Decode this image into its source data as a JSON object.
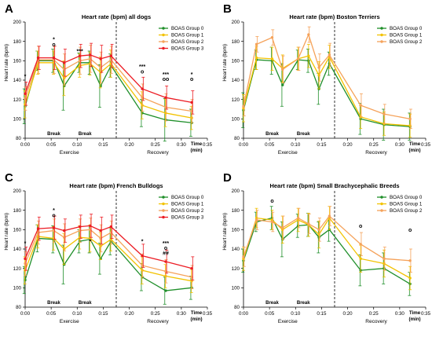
{
  "colors": {
    "g0": "#1f8f2a",
    "g1": "#f2c200",
    "g2": "#f5a25a",
    "g3": "#ec1c24",
    "axis": "#000000"
  },
  "chart_data": [
    {
      "panel": "A",
      "title": "Heart rate (bpm) all dogs",
      "type": "line",
      "ylabel": "Heart rate (bpm)",
      "ylim": [
        80,
        200
      ],
      "yticks": [
        80,
        100,
        120,
        140,
        160,
        180,
        200
      ],
      "xlim": [
        0,
        35
      ],
      "xticks": [
        "0:00",
        "0:05",
        "0:10",
        "0:15",
        "0:20",
        "0:25",
        "0:30",
        "0:35"
      ],
      "xlabel": "Time (min)",
      "phases": [
        "Exercise",
        "Recovery"
      ],
      "breaks": [
        "Break",
        "Break"
      ],
      "legend_position": "top-right",
      "series": [
        {
          "name": "BOAS Group 0",
          "color": "g0",
          "x": [
            0,
            2.5,
            5.5,
            7.5,
            10.5,
            12.5,
            14.5,
            16.5,
            22.5,
            27,
            32
          ],
          "y": [
            113,
            160,
            160,
            134,
            158,
            158,
            134,
            155,
            106,
            99,
            96
          ],
          "err": [
            18,
            10,
            12,
            25,
            10,
            12,
            22,
            12,
            14,
            22,
            14
          ]
        },
        {
          "name": "BOAS Group 1",
          "color": "g1",
          "x": [
            0,
            2.5,
            5.5,
            7.5,
            10.5,
            12.5,
            14.5,
            16.5,
            22.5,
            27,
            32
          ],
          "y": [
            115,
            158,
            158,
            142,
            155,
            157,
            148,
            157,
            114,
            106,
            101
          ],
          "err": [
            14,
            12,
            12,
            18,
            12,
            12,
            16,
            14,
            14,
            14,
            12
          ]
        },
        {
          "name": "BOAS Group 2",
          "color": "g2",
          "x": [
            0,
            2.5,
            5.5,
            7.5,
            10.5,
            12.5,
            14.5,
            16.5,
            22.5,
            27,
            32
          ],
          "y": [
            121,
            161,
            161,
            151,
            160,
            162,
            153,
            161,
            122,
            112,
            108
          ],
          "err": [
            12,
            14,
            14,
            16,
            14,
            14,
            16,
            14,
            14,
            14,
            12
          ]
        },
        {
          "name": "BOAS Group 3",
          "color": "g3",
          "x": [
            0,
            2.5,
            5.5,
            7.5,
            10.5,
            12.5,
            14.5,
            16.5,
            22.5,
            27,
            32
          ],
          "y": [
            126,
            163,
            163,
            158,
            165,
            166,
            162,
            165,
            131,
            122,
            117
          ],
          "err": [
            12,
            12,
            12,
            14,
            12,
            12,
            14,
            12,
            12,
            12,
            12
          ]
        }
      ],
      "annotations": [
        {
          "x": 0,
          "y": 142,
          "text": "*"
        },
        {
          "x": 5.5,
          "y": 180,
          "text": "*"
        },
        {
          "x": 5.5,
          "y": 175,
          "text": "o"
        },
        {
          "x": 10.5,
          "y": 168,
          "text": "***"
        },
        {
          "x": 22.5,
          "y": 152,
          "text": "***"
        },
        {
          "x": 22.5,
          "y": 147,
          "text": "o"
        },
        {
          "x": 27,
          "y": 144,
          "text": "***"
        },
        {
          "x": 27,
          "y": 139,
          "text": "oo"
        },
        {
          "x": 32,
          "y": 144,
          "text": "*"
        },
        {
          "x": 32,
          "y": 139,
          "text": "o"
        }
      ]
    },
    {
      "panel": "B",
      "title": "Heart rate (bpm) Boston Terriers",
      "type": "line",
      "ylabel": "Heart rate (bpm)",
      "ylim": [
        80,
        200
      ],
      "yticks": [
        80,
        100,
        120,
        140,
        160,
        180,
        200
      ],
      "xlim": [
        0,
        35
      ],
      "xticks": [
        "0:00",
        "0:05",
        "0:10",
        "0:15",
        "0:20",
        "0:25",
        "0:30",
        "0:35"
      ],
      "xlabel": "Time (min)",
      "phases": [
        "Exercise",
        "Recovery"
      ],
      "breaks": [
        "Break",
        "Break"
      ],
      "legend_position": "top-right",
      "series": [
        {
          "name": "BOAS Group 0",
          "color": "g0",
          "x": [
            0,
            2.5,
            5.5,
            7.5,
            10.5,
            12.5,
            14.5,
            16.5,
            22.5,
            27,
            32
          ],
          "y": [
            109,
            161,
            160,
            135,
            161,
            160,
            131,
            157,
            100,
            94,
            92
          ],
          "err": [
            18,
            10,
            14,
            22,
            10,
            12,
            16,
            12,
            16,
            16,
            14
          ]
        },
        {
          "name": "BOAS Group 1",
          "color": "g1",
          "x": [
            0,
            2.5,
            5.5,
            7.5,
            10.5,
            12.5,
            14.5,
            16.5,
            22.5,
            27,
            32
          ],
          "y": [
            111,
            163,
            162,
            152,
            162,
            165,
            145,
            164,
            102,
            95,
            93
          ],
          "err": [
            14,
            12,
            12,
            14,
            12,
            12,
            14,
            12,
            12,
            12,
            12
          ]
        },
        {
          "name": "BOAS Group 2",
          "color": "g2",
          "x": [
            0,
            2.5,
            5.5,
            7.5,
            10.5,
            12.5,
            14.5,
            16.5,
            22.5,
            27,
            32
          ],
          "y": [
            113,
            177,
            184,
            151,
            162,
            187,
            153,
            166,
            114,
            105,
            100
          ],
          "err": [
            10,
            8,
            8,
            14,
            12,
            8,
            14,
            12,
            12,
            10,
            10
          ]
        }
      ],
      "annotations": []
    },
    {
      "panel": "C",
      "title": "Heart rate (bpm) French Bulldogs",
      "type": "line",
      "ylabel": "Heart rate (bpm)",
      "ylim": [
        80,
        200
      ],
      "yticks": [
        80,
        100,
        120,
        140,
        160,
        180,
        200
      ],
      "xlim": [
        0,
        35
      ],
      "xticks": [
        "0:00",
        "0:05",
        "0:10",
        "0:15",
        "0:20",
        "0:25",
        "0:30",
        "0:35"
      ],
      "xlabel": "Time (min)",
      "phases": [
        "Exercise",
        "Recovery"
      ],
      "breaks": [
        "Break",
        "Break"
      ],
      "legend_position": "top-right",
      "series": [
        {
          "name": "BOAS Group 0",
          "color": "g0",
          "x": [
            0,
            2.5,
            5.5,
            7.5,
            10.5,
            12.5,
            14.5,
            16.5,
            22.5,
            27,
            32
          ],
          "y": [
            108,
            151,
            150,
            124,
            148,
            150,
            130,
            148,
            111,
            97,
            100
          ],
          "err": [
            14,
            14,
            14,
            20,
            12,
            14,
            16,
            14,
            14,
            14,
            12
          ]
        },
        {
          "name": "BOAS Group 1",
          "color": "g1",
          "x": [
            0,
            2.5,
            5.5,
            7.5,
            10.5,
            12.5,
            14.5,
            16.5,
            22.5,
            27,
            32
          ],
          "y": [
            118,
            153,
            151,
            140,
            152,
            151,
            143,
            150,
            118,
            112,
            107
          ],
          "err": [
            14,
            12,
            12,
            16,
            12,
            14,
            14,
            12,
            14,
            12,
            12
          ]
        },
        {
          "name": "BOAS Group 2",
          "color": "g2",
          "x": [
            0,
            2.5,
            5.5,
            7.5,
            10.5,
            12.5,
            14.5,
            16.5,
            22.5,
            27,
            32
          ],
          "y": [
            125,
            157,
            159,
            152,
            159,
            160,
            151,
            157,
            123,
            117,
            111
          ],
          "err": [
            12,
            12,
            12,
            14,
            12,
            12,
            14,
            12,
            12,
            12,
            12
          ]
        },
        {
          "name": "BOAS Group 3",
          "color": "g3",
          "x": [
            0,
            2.5,
            5.5,
            7.5,
            10.5,
            12.5,
            14.5,
            16.5,
            22.5,
            27,
            32
          ],
          "y": [
            130,
            161,
            162,
            159,
            163,
            164,
            159,
            163,
            133,
            127,
            120
          ],
          "err": [
            12,
            12,
            12,
            12,
            12,
            12,
            14,
            12,
            12,
            12,
            12
          ]
        }
      ],
      "annotations": [
        {
          "x": 0,
          "y": 144,
          "text": "*"
        },
        {
          "x": 5.5,
          "y": 178,
          "text": "*"
        },
        {
          "x": 5.5,
          "y": 173,
          "text": "o"
        },
        {
          "x": 12.5,
          "y": 146,
          "text": "*"
        },
        {
          "x": 22.5,
          "y": 146,
          "text": "*"
        },
        {
          "x": 27,
          "y": 144,
          "text": "***"
        },
        {
          "x": 27,
          "y": 139,
          "text": "o"
        },
        {
          "x": 27,
          "y": 134,
          "text": "##"
        }
      ]
    },
    {
      "panel": "D",
      "title": "Heart rate (bpm) Small Brachycephalic Breeds",
      "type": "line",
      "ylabel": "Heart rate (bpm)",
      "ylim": [
        80,
        200
      ],
      "yticks": [
        80,
        100,
        120,
        140,
        160,
        180,
        200
      ],
      "xlim": [
        0,
        35
      ],
      "xticks": [
        "0:00",
        "0:05",
        "0:10",
        "0:15",
        "0:20",
        "0:25",
        "0:30",
        "0:35"
      ],
      "xlabel": "Time (min)",
      "phases": [
        "Exercise",
        "Recovery"
      ],
      "breaks": [
        "Break",
        "Break"
      ],
      "legend_position": "top-right",
      "series": [
        {
          "name": "BOAS Group 0",
          "color": "g0",
          "x": [
            0,
            2.5,
            5.5,
            7.5,
            10.5,
            12.5,
            14.5,
            16.5,
            22.5,
            27,
            32
          ],
          "y": [
            128,
            168,
            172,
            150,
            164,
            165,
            152,
            160,
            118,
            120,
            104
          ],
          "err": [
            12,
            10,
            12,
            18,
            12,
            12,
            16,
            12,
            16,
            16,
            12
          ]
        },
        {
          "name": "BOAS Group 1",
          "color": "g1",
          "x": [
            0,
            2.5,
            5.5,
            7.5,
            10.5,
            12.5,
            14.5,
            16.5,
            22.5,
            27,
            32
          ],
          "y": [
            130,
            172,
            170,
            160,
            170,
            165,
            155,
            172,
            130,
            125,
            110
          ],
          "err": [
            12,
            10,
            10,
            14,
            12,
            12,
            14,
            12,
            14,
            14,
            12
          ]
        },
        {
          "name": "BOAS Group 2",
          "color": "g2",
          "x": [
            0,
            2.5,
            5.5,
            7.5,
            10.5,
            12.5,
            14.5,
            16.5,
            22.5,
            27,
            32
          ],
          "y": [
            132,
            170,
            168,
            162,
            172,
            166,
            160,
            174,
            145,
            130,
            128
          ],
          "err": [
            10,
            10,
            10,
            12,
            10,
            10,
            12,
            10,
            12,
            12,
            12
          ]
        }
      ],
      "annotations": [
        {
          "x": 5.5,
          "y": 188,
          "text": "o"
        },
        {
          "x": 22.5,
          "y": 162,
          "text": "o"
        },
        {
          "x": 32,
          "y": 158,
          "text": "o"
        }
      ]
    }
  ]
}
